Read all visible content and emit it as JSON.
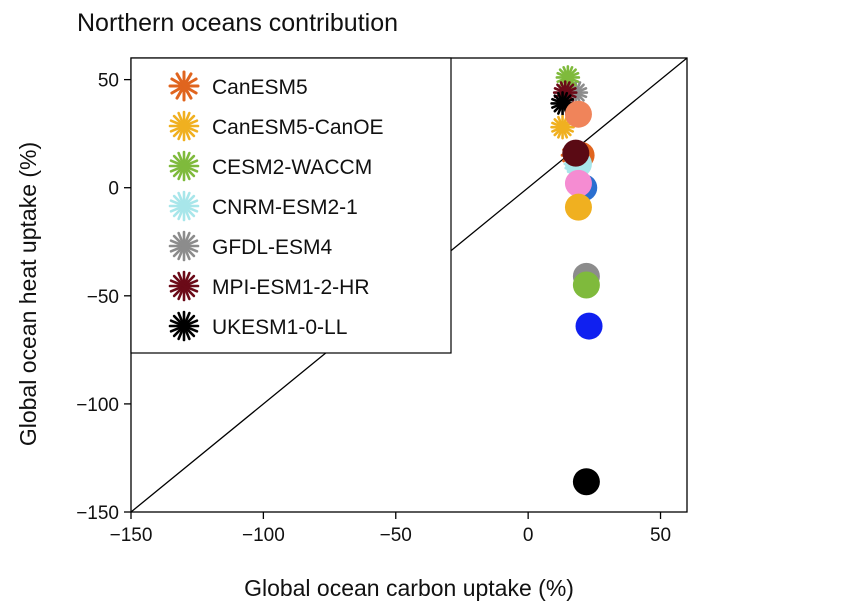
{
  "chart_data": {
    "type": "scatter",
    "title": "Northern oceans contribution",
    "xlabel": "Global ocean carbon uptake (%)",
    "ylabel": "Global ocean heat uptake (%)",
    "xlim": [
      -150,
      60
    ],
    "ylim": [
      -150,
      60
    ],
    "xticks": [
      -150,
      -100,
      -50,
      0,
      50
    ],
    "yticks": [
      -150,
      -100,
      -50,
      0,
      50
    ],
    "xtick_labels": [
      "−150",
      "−100",
      "−50",
      "0",
      "50"
    ],
    "ytick_labels": [
      "−150",
      "−100",
      "−50",
      "0",
      "50"
    ],
    "grid": false,
    "reference_line": "y = x",
    "legend_position": "top-left",
    "legend": [
      {
        "name": "CanESM5",
        "color": "#e0651f",
        "marker": "star6"
      },
      {
        "name": "CanESM5-CanOE",
        "color": "#f0b020",
        "marker": "star8"
      },
      {
        "name": "CESM2-WACCM",
        "color": "#7fba3c",
        "marker": "star8"
      },
      {
        "name": "CNRM-ESM2-1",
        "color": "#a8e6ea",
        "marker": "star8"
      },
      {
        "name": "GFDL-ESM4",
        "color": "#8c8c8c",
        "marker": "star8"
      },
      {
        "name": "MPI-ESM1-2-HR",
        "color": "#6b0a18",
        "marker": "star8"
      },
      {
        "name": "UKESM1-0-LL",
        "color": "#000000",
        "marker": "star8"
      }
    ],
    "star_points": [
      {
        "x": 18,
        "y": 44,
        "color": "#8c8c8c",
        "marker": "star8"
      },
      {
        "x": 15,
        "y": 51,
        "color": "#7fba3c",
        "marker": "star8"
      },
      {
        "x": 14,
        "y": 44,
        "color": "#6b0a18",
        "marker": "star8"
      },
      {
        "x": 13,
        "y": 39,
        "color": "#000000",
        "marker": "star8"
      },
      {
        "x": 13,
        "y": 28,
        "color": "#f0b020",
        "marker": "star8"
      },
      {
        "x": 17,
        "y": 15,
        "color": "#e0651f",
        "marker": "star6"
      },
      {
        "x": 18,
        "y": 11,
        "color": "#a8e6ea",
        "marker": "star8"
      }
    ],
    "circle_points": [
      {
        "x": 19,
        "y": 34,
        "color": "#f0845a"
      },
      {
        "x": 20,
        "y": 15,
        "color": "#e0651f"
      },
      {
        "x": 21,
        "y": 0,
        "color": "#2a6fd0"
      },
      {
        "x": 19,
        "y": 11,
        "color": "#a8e6ea"
      },
      {
        "x": 18,
        "y": 16,
        "color": "#5a0a14"
      },
      {
        "x": 19,
        "y": 2,
        "color": "#f58cd2"
      },
      {
        "x": 19,
        "y": -9,
        "color": "#f0b020"
      },
      {
        "x": 22,
        "y": -41,
        "color": "#8c8c8c"
      },
      {
        "x": 22,
        "y": -45,
        "color": "#7fba3c"
      },
      {
        "x": 23,
        "y": -64,
        "color": "#1020f0"
      },
      {
        "x": 22,
        "y": -136,
        "color": "#000000"
      }
    ]
  }
}
